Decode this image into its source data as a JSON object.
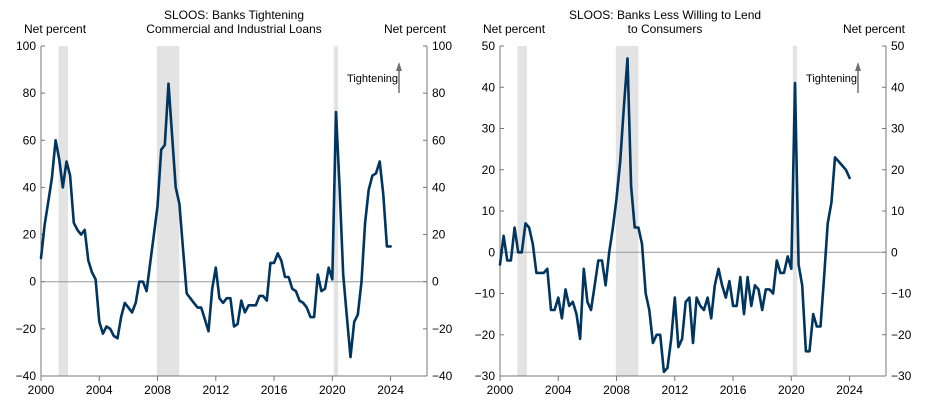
{
  "colors": {
    "line": "#00355f",
    "shade": "#e3e3e3",
    "zero": "#999999",
    "axis": "#777777",
    "arrow": "#707070"
  },
  "chart_data": [
    {
      "type": "line",
      "title_lines": [
        "SLOOS: Banks Tightening",
        "Commercial and Industrial Loans"
      ],
      "left_axis_label": "Net percent",
      "right_axis_label": "Net percent",
      "annotation": "Tightening",
      "xlim": [
        2000,
        2026.5
      ],
      "ylim": [
        -40,
        100
      ],
      "x_ticks": [
        2000,
        2004,
        2008,
        2012,
        2016,
        2020,
        2024
      ],
      "x_tick_labels": [
        "2000",
        "2004",
        "2008",
        "2012",
        "2016",
        "2020",
        "2024"
      ],
      "y_ticks": [
        -40,
        -20,
        0,
        20,
        40,
        60,
        80,
        100
      ],
      "y_tick_labels": [
        "−40",
        "−20",
        "0",
        "20",
        "40",
        "60",
        "80",
        "100"
      ],
      "recession_shading": [
        [
          2001.2,
          2001.85
        ],
        [
          2007.95,
          2009.5
        ],
        [
          2020.1,
          2020.4
        ]
      ],
      "series": [
        {
          "x": [
            2000.0,
            2000.25,
            2000.5,
            2000.75,
            2001.0,
            2001.25,
            2001.5,
            2001.75,
            2002.0,
            2002.25,
            2002.5,
            2002.75,
            2003.0,
            2003.25,
            2003.5,
            2003.75,
            2004.0,
            2004.25,
            2004.5,
            2004.75,
            2005.0,
            2005.25,
            2005.5,
            2005.75,
            2006.0,
            2006.25,
            2006.5,
            2006.75,
            2007.0,
            2007.25,
            2007.5,
            2007.75,
            2008.0,
            2008.25,
            2008.5,
            2008.75,
            2009.0,
            2009.25,
            2009.5,
            2009.75,
            2010.0,
            2010.25,
            2010.5,
            2010.75,
            2011.0,
            2011.25,
            2011.5,
            2011.75,
            2012.0,
            2012.25,
            2012.5,
            2012.75,
            2013.0,
            2013.25,
            2013.5,
            2013.75,
            2014.0,
            2014.25,
            2014.5,
            2014.75,
            2015.0,
            2015.25,
            2015.5,
            2015.75,
            2016.0,
            2016.25,
            2016.5,
            2016.75,
            2017.0,
            2017.25,
            2017.5,
            2017.75,
            2018.0,
            2018.25,
            2018.5,
            2018.75,
            2019.0,
            2019.25,
            2019.5,
            2019.75,
            2020.0,
            2020.25,
            2020.5,
            2020.75,
            2021.0,
            2021.25,
            2021.5,
            2021.75,
            2022.0,
            2022.25,
            2022.5,
            2022.75,
            2023.0,
            2023.25,
            2023.5,
            2023.75,
            2024.0
          ],
          "values": [
            10,
            24,
            34,
            44,
            60,
            52,
            40,
            51,
            45,
            25,
            22,
            20,
            22,
            9,
            4,
            1,
            -17,
            -22,
            -19,
            -20,
            -23,
            -24,
            -15,
            -9,
            -11,
            -13,
            -9,
            0,
            0,
            -4,
            8,
            20,
            32,
            56,
            58,
            84,
            62,
            40,
            33,
            14,
            -5,
            -7,
            -9,
            -11,
            -11,
            -16,
            -21,
            -3,
            6,
            -7,
            -9,
            -7,
            -7,
            -19,
            -18,
            -8,
            -13,
            -10,
            -10,
            -10,
            -6,
            -6,
            -8,
            8,
            8,
            12,
            9,
            2,
            2,
            -3,
            -4,
            -8,
            -9,
            -11,
            -15,
            -15,
            3,
            -4,
            -3,
            6,
            1,
            72,
            40,
            3,
            -15,
            -32,
            -17,
            -14,
            0,
            25,
            39,
            45,
            46,
            51,
            37,
            15,
            15
          ]
        }
      ]
    },
    {
      "type": "line",
      "title_lines": [
        "SLOOS: Banks Less Willing to Lend",
        "to Consumers"
      ],
      "left_axis_label": "Net percent",
      "right_axis_label": "Net percent",
      "annotation": "Tightening",
      "xlim": [
        2000,
        2026.5
      ],
      "ylim": [
        -30,
        50
      ],
      "x_ticks": [
        2000,
        2004,
        2008,
        2012,
        2016,
        2020,
        2024
      ],
      "x_tick_labels": [
        "2000",
        "2004",
        "2008",
        "2012",
        "2016",
        "2020",
        "2024"
      ],
      "y_ticks": [
        -30,
        -20,
        -10,
        0,
        10,
        20,
        30,
        40,
        50
      ],
      "y_tick_labels": [
        "−30",
        "−20",
        "−10",
        "0",
        "10",
        "20",
        "30",
        "40",
        "50"
      ],
      "recession_shading": [
        [
          2001.2,
          2001.85
        ],
        [
          2007.95,
          2009.5
        ],
        [
          2020.1,
          2020.4
        ]
      ],
      "series": [
        {
          "x": [
            2000.0,
            2000.25,
            2000.5,
            2000.75,
            2001.0,
            2001.25,
            2001.5,
            2001.75,
            2002.0,
            2002.25,
            2002.5,
            2002.75,
            2003.0,
            2003.25,
            2003.5,
            2003.75,
            2004.0,
            2004.25,
            2004.5,
            2004.75,
            2005.0,
            2005.25,
            2005.5,
            2005.75,
            2006.0,
            2006.25,
            2006.5,
            2006.75,
            2007.0,
            2007.25,
            2007.5,
            2007.75,
            2008.0,
            2008.25,
            2008.5,
            2008.75,
            2009.0,
            2009.25,
            2009.5,
            2009.75,
            2010.0,
            2010.25,
            2010.5,
            2010.75,
            2011.0,
            2011.25,
            2011.5,
            2011.75,
            2012.0,
            2012.25,
            2012.5,
            2012.75,
            2013.0,
            2013.25,
            2013.5,
            2013.75,
            2014.0,
            2014.25,
            2014.5,
            2014.75,
            2015.0,
            2015.25,
            2015.5,
            2015.75,
            2016.0,
            2016.25,
            2016.5,
            2016.75,
            2017.0,
            2017.25,
            2017.5,
            2017.75,
            2018.0,
            2018.25,
            2018.5,
            2018.75,
            2019.0,
            2019.25,
            2019.5,
            2019.75,
            2020.0,
            2020.25,
            2020.5,
            2020.75,
            2021.0,
            2021.25,
            2021.5,
            2021.75,
            2022.0,
            2022.25,
            2022.5,
            2022.75,
            2023.0,
            2023.25,
            2023.5,
            2023.75,
            2024.0
          ],
          "values": [
            -3,
            4,
            -2,
            -2,
            6,
            0,
            0,
            7,
            6,
            2,
            -5,
            -5,
            -5,
            -4,
            -14,
            -14,
            -11,
            -16,
            -9,
            -13,
            -12,
            -15,
            -21,
            -4,
            -12,
            -14,
            -8,
            -2,
            -2,
            -8,
            0,
            6,
            13,
            22,
            35,
            47,
            16,
            6,
            6,
            2,
            -10,
            -14,
            -22,
            -20,
            -20,
            -29,
            -28,
            -21,
            -11,
            -23,
            -21,
            -12,
            -11,
            -22,
            -11,
            -13,
            -14,
            -11,
            -16,
            -8,
            -4,
            -8,
            -11,
            -7,
            -13,
            -13,
            -6,
            -15,
            -6,
            -13,
            -8,
            -9,
            -14,
            -9,
            -9,
            -10,
            -2,
            -5,
            -5,
            -1,
            -4,
            41,
            -3,
            -8,
            -24,
            -24,
            -15,
            -18,
            -18,
            -6,
            7,
            12,
            23,
            22,
            21,
            20,
            18
          ]
        }
      ]
    }
  ]
}
